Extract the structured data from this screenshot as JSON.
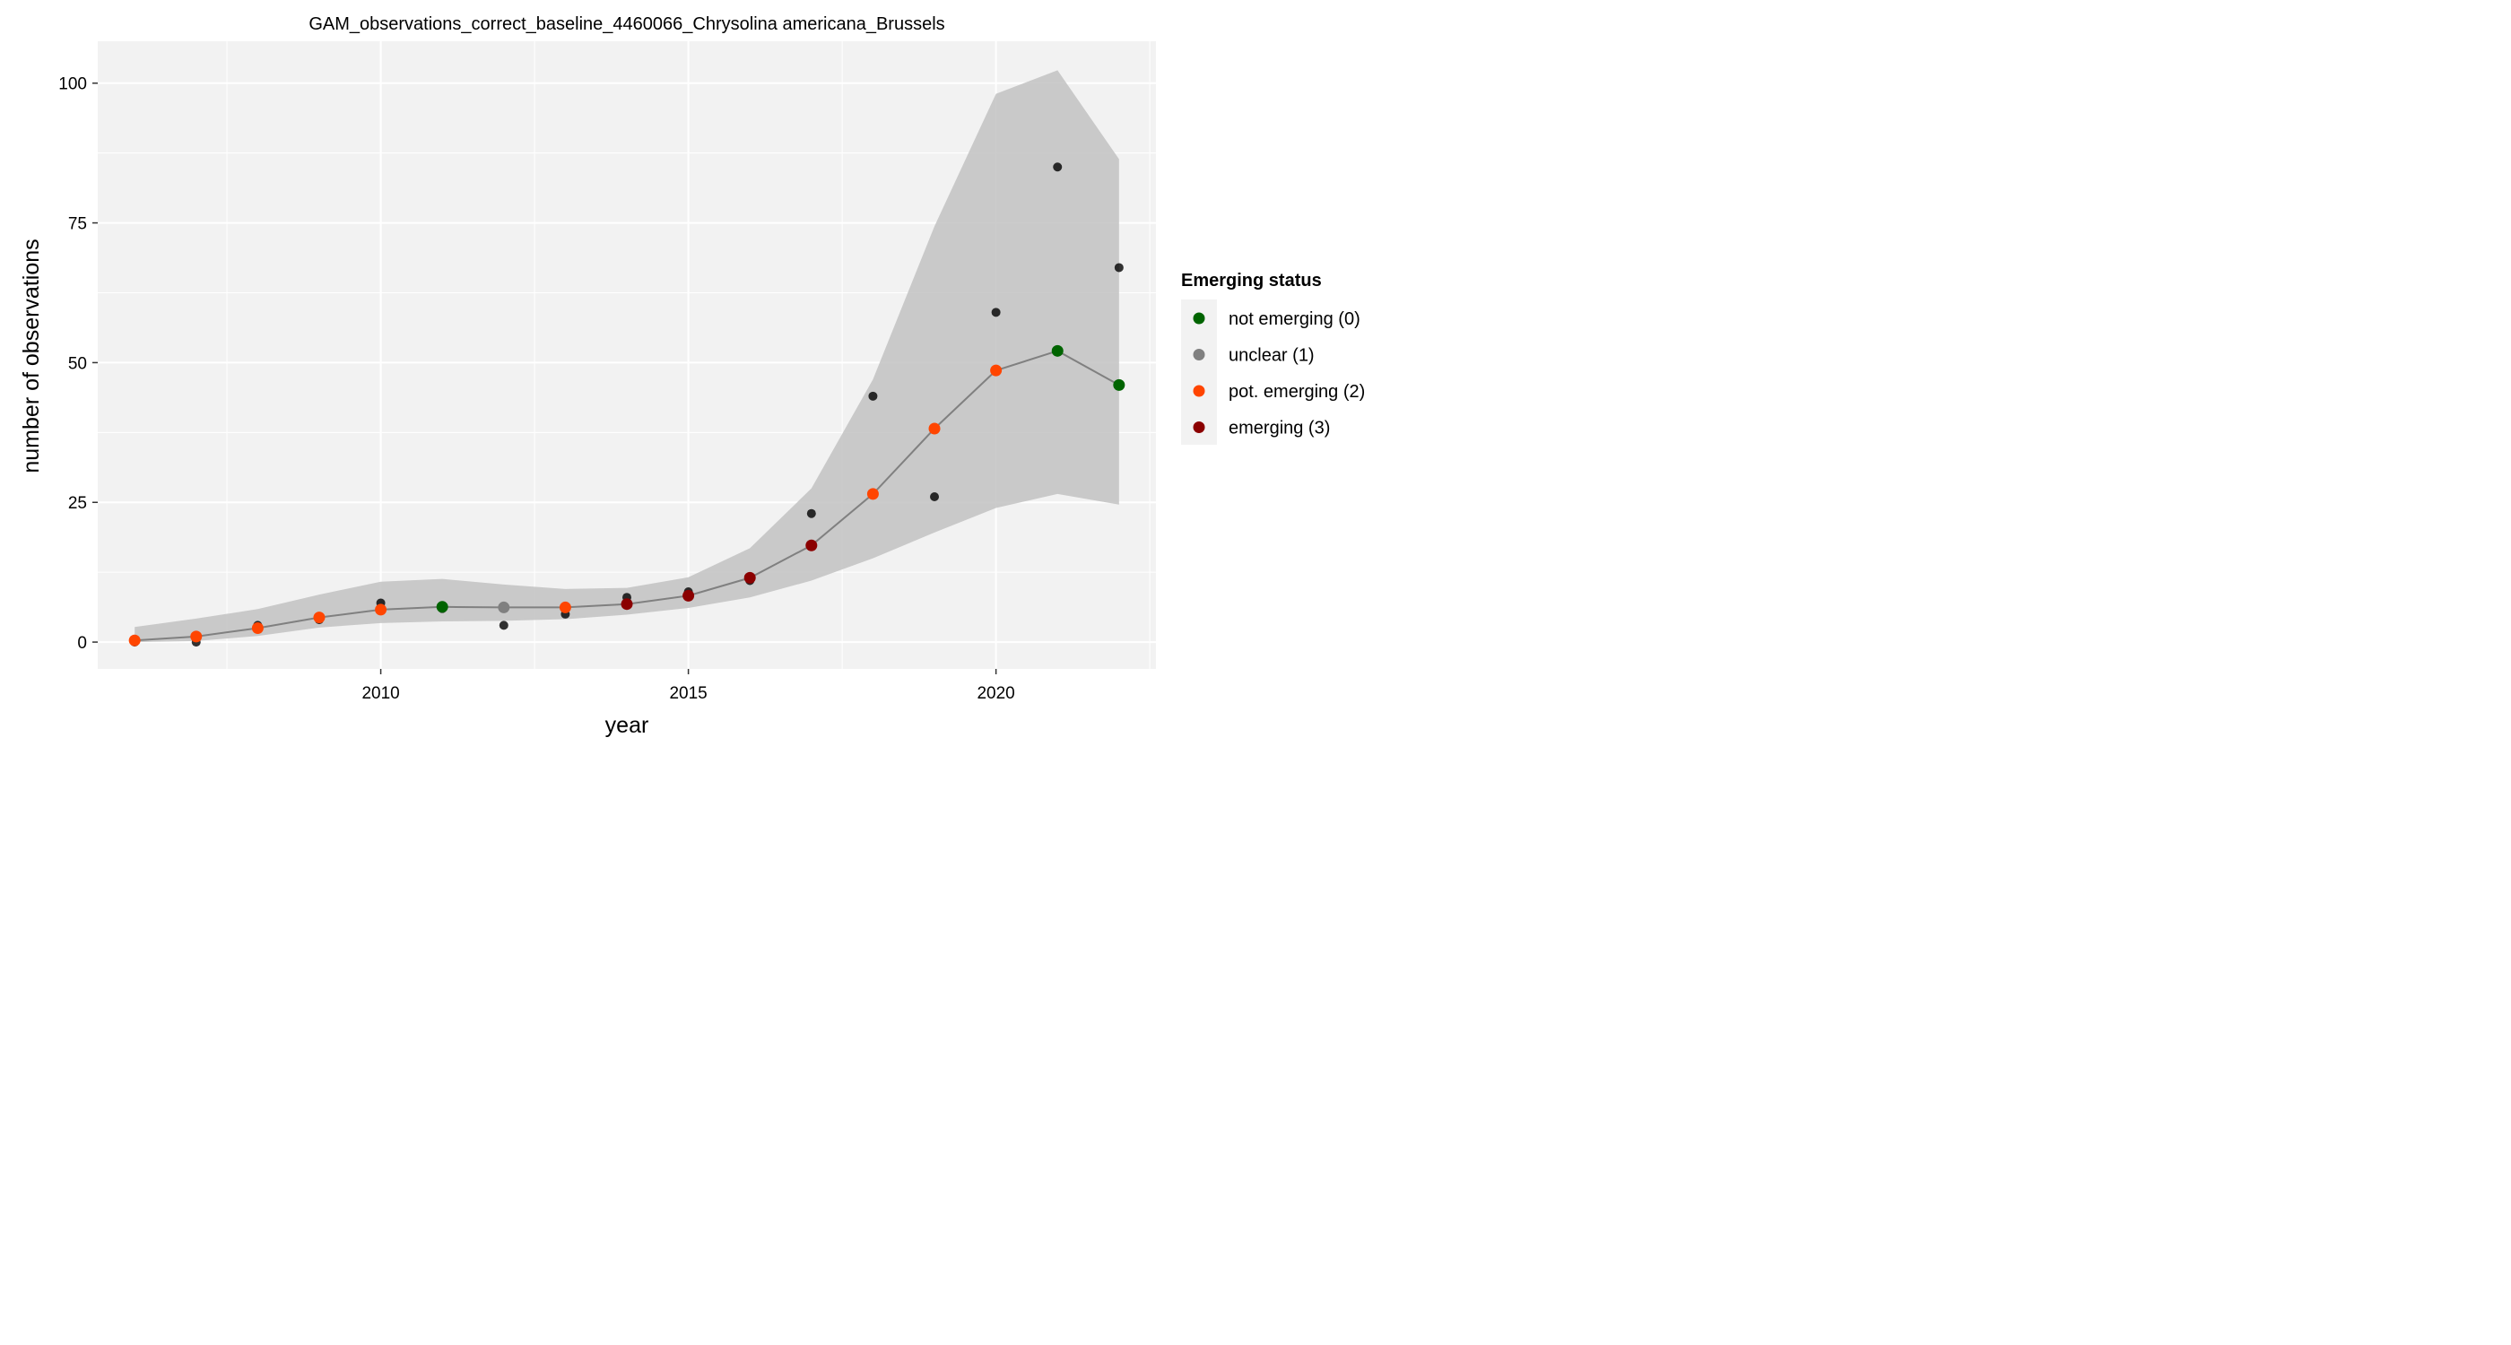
{
  "chart_data": {
    "type": "scatter",
    "title": "GAM_observations_correct_baseline_4460066_Chrysolina americana_Brussels",
    "xlabel": "year",
    "ylabel": "number of observations",
    "xlim": [
      2005.4,
      2022.6
    ],
    "ylim": [
      -4.8,
      107.5
    ],
    "x_ticks": [
      2010,
      2015,
      2020
    ],
    "y_ticks": [
      0,
      25,
      50,
      75,
      100
    ],
    "grid": true,
    "x": [
      2006,
      2007,
      2008,
      2009,
      2010,
      2011,
      2012,
      2013,
      2014,
      2015,
      2016,
      2017,
      2018,
      2019,
      2020,
      2021,
      2022
    ],
    "observed": [
      0,
      0,
      3,
      4,
      7,
      6,
      3,
      5,
      8,
      9,
      11,
      23,
      44,
      26,
      59,
      85,
      67
    ],
    "fitted": [
      0.3,
      1.0,
      2.5,
      4.4,
      5.8,
      6.3,
      6.2,
      6.2,
      6.8,
      8.3,
      11.5,
      17.3,
      26.5,
      38.2,
      48.6,
      52.1,
      46.0
    ],
    "lower": [
      0.0,
      0.2,
      1.1,
      2.6,
      3.4,
      3.7,
      3.8,
      4.1,
      4.9,
      6.1,
      8.0,
      11.0,
      15.0,
      19.6,
      24.0,
      26.5,
      24.6
    ],
    "upper": [
      2.7,
      4.2,
      5.9,
      8.5,
      10.8,
      11.3,
      10.3,
      9.5,
      9.7,
      11.6,
      16.8,
      27.5,
      47.0,
      74.4,
      98.1,
      102.3,
      86.4
    ],
    "status": [
      2,
      2,
      2,
      2,
      2,
      0,
      1,
      2,
      3,
      3,
      3,
      3,
      2,
      2,
      2,
      0,
      0
    ],
    "legend": {
      "title": "Emerging status",
      "position": "right",
      "entries": [
        {
          "label": "not emerging (0)",
          "color": "#006400"
        },
        {
          "label": "unclear (1)",
          "color": "#808080"
        },
        {
          "label": "pot. emerging (2)",
          "color": "#FF4500"
        },
        {
          "label": "emerging (3)",
          "color": "#8B0000"
        }
      ]
    },
    "colors": {
      "panel_background": "#F2F2F2",
      "grid": "#FFFFFF",
      "ribbon": "#BEBEBE",
      "fitted_line": "#808080",
      "observed_point": "#000000"
    }
  }
}
